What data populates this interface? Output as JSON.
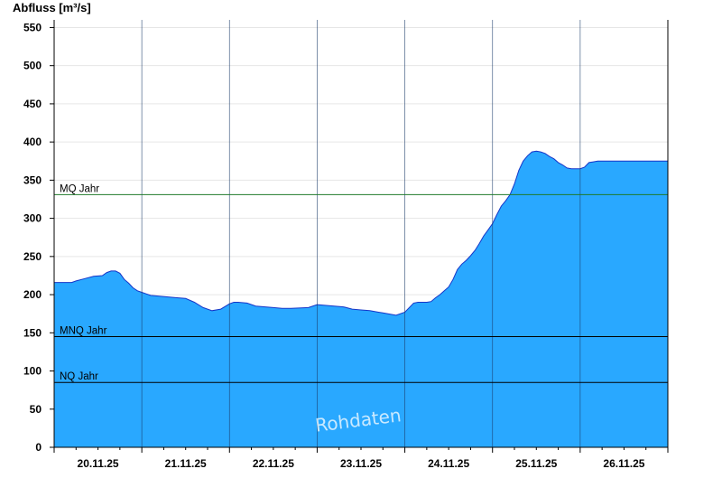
{
  "chart_data": {
    "type": "area",
    "title": "",
    "ylabel": "Abfluss [m³/s]",
    "xlabel": "",
    "ylim": [
      0,
      560
    ],
    "xlim": [
      0,
      7
    ],
    "yticks": [
      0,
      50,
      100,
      150,
      200,
      250,
      300,
      350,
      400,
      450,
      500,
      550
    ],
    "xticks": [
      "20.11.25",
      "21.11.25",
      "22.11.25",
      "23.11.25",
      "24.11.25",
      "25.11.25",
      "26.11.25"
    ],
    "grid": true,
    "colors": {
      "fill": "#29a8ff",
      "line": "#1535c8",
      "mq_line": "#1f7a2a",
      "ref_line": "#000000",
      "grid": "#e6e6e6"
    },
    "reference_lines": [
      {
        "label": "MQ Jahr",
        "value": 331
      },
      {
        "label": "MNQ Jahr",
        "value": 145
      },
      {
        "label": "NQ Jahr",
        "value": 85
      }
    ],
    "watermark": "Rohdaten",
    "series": [
      {
        "x": [
          0,
          0.2,
          0.25,
          0.35,
          0.45,
          0.55,
          0.6,
          0.65,
          0.7,
          0.75,
          0.8,
          0.85,
          0.9,
          0.95,
          1.0,
          1.05,
          1.1,
          1.2,
          1.3,
          1.4,
          1.5,
          1.6,
          1.7,
          1.8,
          1.9,
          2.0,
          2.05,
          2.1,
          2.2,
          2.3,
          2.5,
          2.6,
          2.7,
          2.9,
          3.0,
          3.3,
          3.4,
          3.5,
          3.6,
          3.7,
          3.75,
          3.9,
          4.0,
          4.1,
          4.15,
          4.2,
          4.25,
          4.3,
          4.35,
          4.4,
          4.45,
          4.5,
          4.55,
          4.6,
          4.65,
          4.7,
          4.75,
          4.8,
          4.85,
          4.9,
          4.95,
          5.0,
          5.05,
          5.1,
          5.15,
          5.2,
          5.25,
          5.3,
          5.35,
          5.4,
          5.45,
          5.5,
          5.55,
          5.6,
          5.65,
          5.7,
          5.75,
          5.8,
          5.85,
          5.9,
          5.95,
          6.0,
          6.05,
          6.1,
          6.15,
          6.2,
          6.25,
          6.3,
          6.35,
          6.4,
          6.45,
          6.5,
          6.55,
          6.6,
          6.65,
          6.7,
          6.75,
          6.8,
          6.85,
          6.9,
          7.0
        ],
        "values": [
          216,
          216,
          218,
          221,
          224,
          225,
          229,
          231,
          231,
          228,
          220,
          215,
          209,
          205,
          203,
          201,
          199,
          198,
          197,
          196,
          195,
          190,
          183,
          179,
          181,
          188,
          190,
          190,
          189,
          185,
          183,
          182,
          182,
          183,
          187,
          184,
          181,
          180,
          179,
          177,
          176,
          173,
          177,
          189,
          190,
          190,
          190,
          191,
          196,
          200,
          205,
          210,
          220,
          233,
          240,
          245,
          251,
          258,
          267,
          277,
          285,
          293,
          305,
          316,
          323,
          331,
          345,
          363,
          375,
          382,
          387,
          388,
          387,
          385,
          381,
          378,
          373,
          370,
          366,
          365,
          365,
          365,
          367,
          373,
          374,
          375,
          375,
          375,
          375,
          375,
          375,
          375,
          375,
          375,
          375,
          375,
          375,
          375,
          375,
          375,
          375
        ]
      }
    ]
  }
}
